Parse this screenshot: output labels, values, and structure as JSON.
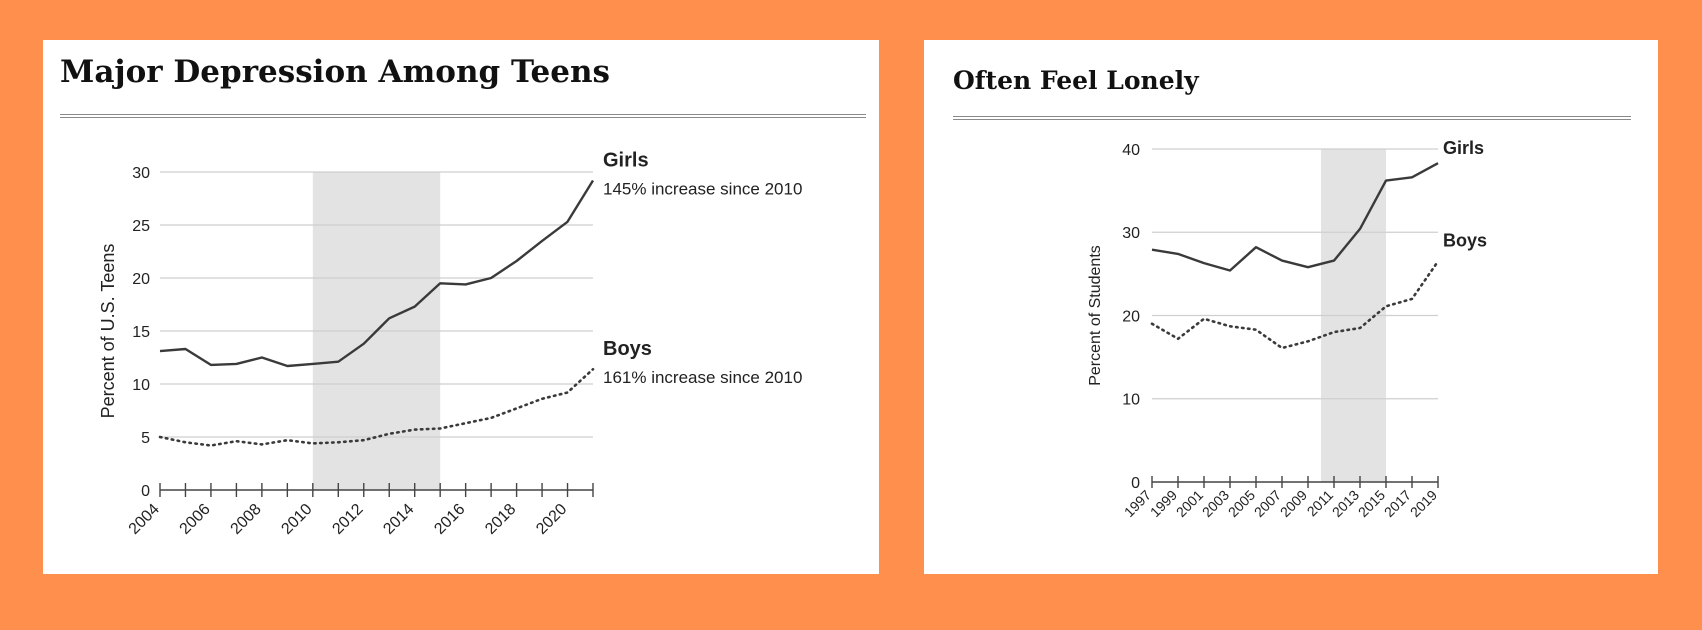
{
  "background_color": "#FF8F4D",
  "chart_data": [
    {
      "type": "line",
      "title": "Major Depression Among Teens",
      "ylabel": "Percent of U.S. Teens",
      "xlabel": "",
      "x": [
        2004,
        2005,
        2006,
        2007,
        2008,
        2009,
        2010,
        2011,
        2012,
        2013,
        2014,
        2015,
        2016,
        2017,
        2018,
        2019,
        2020,
        2021
      ],
      "x_ticks": [
        "2004",
        "2006",
        "2008",
        "2010",
        "2012",
        "2014",
        "2016",
        "2018",
        "2020"
      ],
      "y_ticks": [
        "0",
        "5",
        "10",
        "15",
        "20",
        "25",
        "30"
      ],
      "xlim": [
        2004,
        2021
      ],
      "ylim": [
        0,
        30
      ],
      "shaded_range": [
        2010,
        2015
      ],
      "grid": "horizontal",
      "series": [
        {
          "name": "Girls",
          "annotation": "145% increase since 2010",
          "style": "solid",
          "values": [
            13.1,
            13.3,
            11.8,
            11.9,
            12.5,
            11.7,
            11.9,
            12.1,
            13.8,
            16.2,
            17.3,
            19.5,
            19.4,
            20.0,
            21.6,
            23.5,
            25.3,
            29.2
          ]
        },
        {
          "name": "Boys",
          "annotation": "161% increase since 2010",
          "style": "dotted",
          "values": [
            5.0,
            4.5,
            4.2,
            4.6,
            4.3,
            4.7,
            4.4,
            4.5,
            4.7,
            5.3,
            5.7,
            5.8,
            6.3,
            6.8,
            7.7,
            8.6,
            9.2,
            11.4
          ]
        }
      ]
    },
    {
      "type": "line",
      "title": "Often Feel Lonely",
      "ylabel": "Percent of Students",
      "xlabel": "",
      "x": [
        1997,
        1999,
        2001,
        2003,
        2005,
        2007,
        2009,
        2011,
        2013,
        2015,
        2017,
        2019
      ],
      "x_ticks": [
        "1997",
        "1999",
        "2001",
        "2003",
        "2005",
        "2007",
        "2009",
        "2011",
        "2013",
        "2015",
        "2017",
        "2019"
      ],
      "y_ticks": [
        "0",
        "10",
        "20",
        "30",
        "40"
      ],
      "xlim": [
        1997,
        2019
      ],
      "ylim": [
        0,
        40
      ],
      "shaded_range": [
        2010,
        2015
      ],
      "grid": "horizontal",
      "series": [
        {
          "name": "Girls",
          "style": "solid",
          "values": [
            27.9,
            27.4,
            26.3,
            25.4,
            28.2,
            26.6,
            25.8,
            26.6,
            30.4,
            36.2,
            36.6,
            38.3
          ]
        },
        {
          "name": "Boys",
          "style": "dotted",
          "values": [
            19.0,
            17.2,
            19.6,
            18.7,
            18.3,
            16.1,
            16.9,
            18.0,
            18.5,
            21.1,
            22.0,
            26.5
          ]
        }
      ]
    }
  ]
}
